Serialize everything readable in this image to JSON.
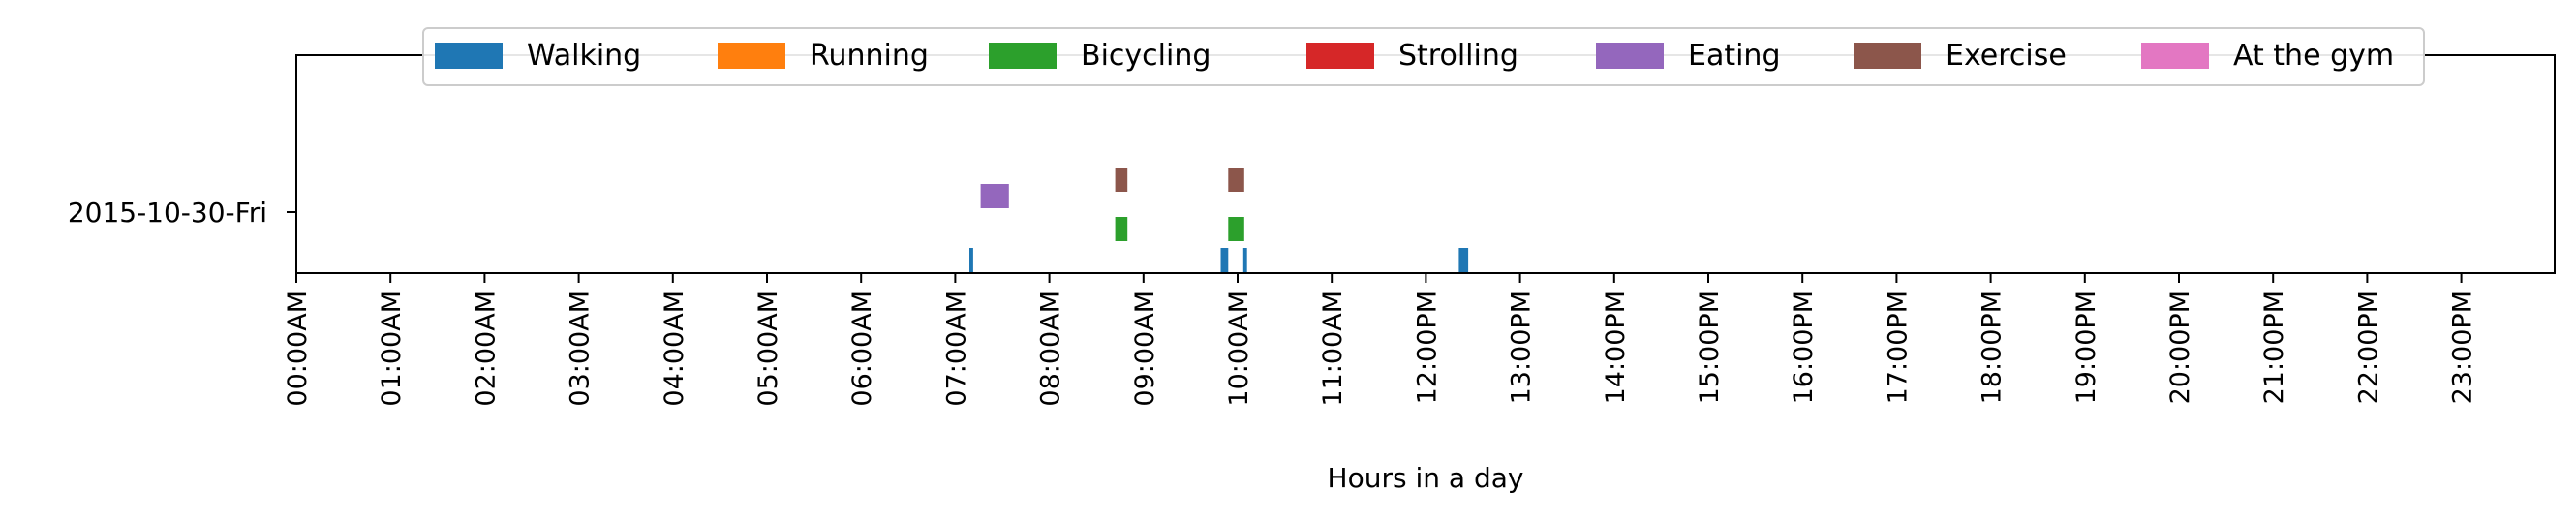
{
  "chart_data": {
    "type": "timeline",
    "title": "",
    "xlabel": "Hours in a day",
    "ylabel": "",
    "xlim": [
      0,
      24
    ],
    "x_tick_labels": [
      "00:00AM",
      "01:00AM",
      "02:00AM",
      "03:00AM",
      "04:00AM",
      "05:00AM",
      "06:00AM",
      "07:00AM",
      "08:00AM",
      "09:00AM",
      "10:00AM",
      "11:00AM",
      "12:00PM",
      "13:00PM",
      "14:00PM",
      "15:00PM",
      "16:00PM",
      "17:00PM",
      "18:00PM",
      "19:00PM",
      "20:00PM",
      "21:00PM",
      "22:00PM",
      "23:00PM"
    ],
    "y_categories": [
      "2015-10-30-Fri"
    ],
    "legend": {
      "location": "top-center",
      "columns": 7
    },
    "grid": false,
    "series": [
      {
        "name": "Walking",
        "color": "#1f77b4",
        "intervals": [
          [
            7.15,
            7.19
          ],
          [
            9.82,
            9.9
          ],
          [
            10.06,
            10.1
          ],
          [
            12.35,
            12.45
          ]
        ]
      },
      {
        "name": "Running",
        "color": "#ff7f0e",
        "intervals": []
      },
      {
        "name": "Bicycling",
        "color": "#2ca02c",
        "intervals": [
          [
            8.7,
            8.83
          ],
          [
            9.9,
            10.07
          ]
        ]
      },
      {
        "name": "Strolling",
        "color": "#d62728",
        "intervals": []
      },
      {
        "name": "Eating",
        "color": "#9467bd",
        "intervals": [
          [
            7.27,
            7.57
          ]
        ]
      },
      {
        "name": "Exercise",
        "color": "#8c564b",
        "intervals": [
          [
            8.7,
            8.83
          ],
          [
            9.9,
            10.07
          ]
        ]
      },
      {
        "name": "At the gym",
        "color": "#e377c2",
        "intervals": []
      }
    ]
  }
}
